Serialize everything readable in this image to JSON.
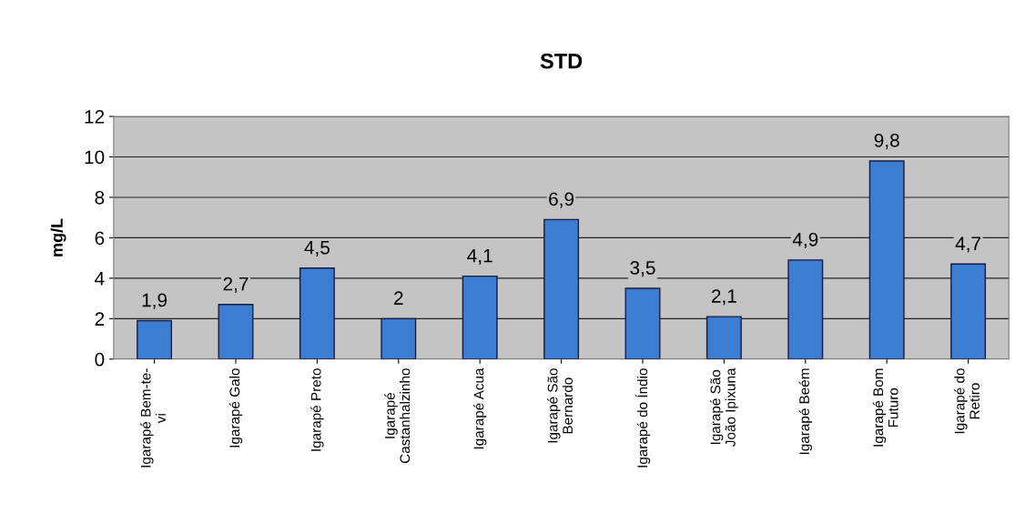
{
  "chart_data": {
    "type": "bar",
    "title": "STD",
    "ylabel": "mg/L",
    "categories": [
      "Igarapé Bem-te-\nvi",
      "Igarapé Galo",
      "Igarapé Preto",
      "Igarapé\nCastanhalzinho",
      "Igarapé Acua",
      "Igarapé São\nBernardo",
      "Igarapé do Índio",
      "Igarapé São\nJoão Ipixuna",
      "Igarapé Beém",
      "Igarapé Bom\nFuturo",
      "Igarapé do\nRetiro"
    ],
    "values": [
      1.9,
      2.7,
      4.5,
      2,
      4.1,
      6.9,
      3.5,
      2.1,
      4.9,
      9.8,
      4.7
    ],
    "value_labels": [
      "1,9",
      "2,7",
      "4,5",
      "2",
      "4,1",
      "6,9",
      "3,5",
      "2,1",
      "4,9",
      "9,8",
      "4,7"
    ],
    "color": "#3b7dd0",
    "ylim": [
      0,
      12
    ],
    "yticks": [
      0,
      2,
      4,
      6,
      8,
      10,
      12
    ],
    "grid": "y"
  }
}
